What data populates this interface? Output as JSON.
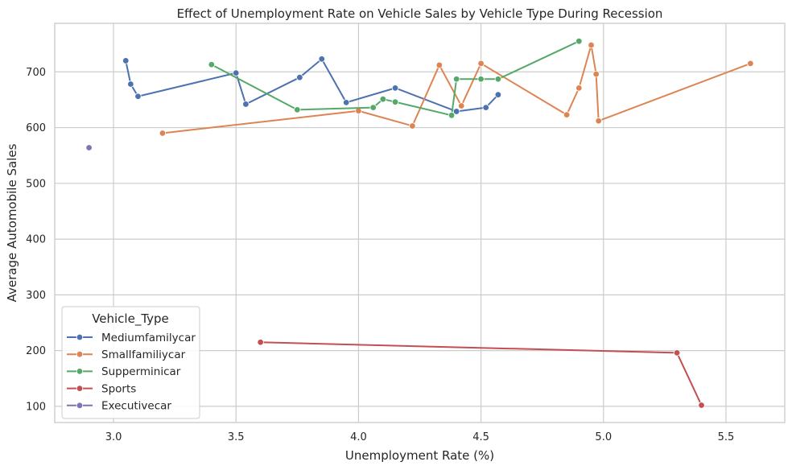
{
  "chart_data": {
    "type": "line",
    "title": "Effect of Unemployment Rate on Vehicle Sales by Vehicle Type During Recession",
    "xlabel": "Unemployment Rate (%)",
    "ylabel": "Average Automobile Sales",
    "xlim": [
      2.76,
      5.74
    ],
    "ylim": [
      71,
      787
    ],
    "xticks": [
      3.0,
      3.5,
      4.0,
      4.5,
      5.0,
      5.5
    ],
    "xtick_labels": [
      "3.0",
      "3.5",
      "4.0",
      "4.5",
      "5.0",
      "5.5"
    ],
    "yticks": [
      100,
      200,
      300,
      400,
      500,
      600,
      700
    ],
    "ytick_labels": [
      "100",
      "200",
      "300",
      "400",
      "500",
      "600",
      "700"
    ],
    "grid": true,
    "legend": {
      "title": "Vehicle_Type",
      "placement": "lower-left"
    },
    "series": [
      {
        "name": "Mediumfamilycar",
        "color": "#4c72b0",
        "points": [
          [
            3.05,
            720
          ],
          [
            3.07,
            678
          ],
          [
            3.1,
            656
          ],
          [
            3.5,
            698
          ],
          [
            3.54,
            642
          ],
          [
            3.76,
            690
          ],
          [
            3.85,
            723
          ],
          [
            3.95,
            645
          ],
          [
            4.15,
            671
          ],
          [
            4.4,
            629
          ],
          [
            4.52,
            636
          ],
          [
            4.57,
            659
          ]
        ]
      },
      {
        "name": "Smallfamiliycar",
        "color": "#dd8452",
        "points": [
          [
            3.2,
            590
          ],
          [
            4.0,
            630
          ],
          [
            4.22,
            603
          ],
          [
            4.33,
            712
          ],
          [
            4.42,
            639
          ],
          [
            4.5,
            715
          ],
          [
            4.85,
            623
          ],
          [
            4.9,
            671
          ],
          [
            4.95,
            748
          ],
          [
            4.97,
            696
          ],
          [
            4.98,
            612
          ],
          [
            5.6,
            715
          ]
        ]
      },
      {
        "name": "Supperminicar",
        "color": "#55a868",
        "points": [
          [
            3.4,
            713
          ],
          [
            3.75,
            632
          ],
          [
            4.06,
            636
          ],
          [
            4.1,
            651
          ],
          [
            4.15,
            646
          ],
          [
            4.38,
            622
          ],
          [
            4.4,
            687
          ],
          [
            4.5,
            687
          ],
          [
            4.57,
            687
          ],
          [
            4.9,
            755
          ]
        ]
      },
      {
        "name": "Sports",
        "color": "#c44e52",
        "points": [
          [
            3.6,
            215
          ],
          [
            5.3,
            196
          ],
          [
            5.4,
            102
          ]
        ]
      },
      {
        "name": "Executivecar",
        "color": "#8172b3",
        "points": [
          [
            2.9,
            564
          ]
        ]
      }
    ]
  }
}
